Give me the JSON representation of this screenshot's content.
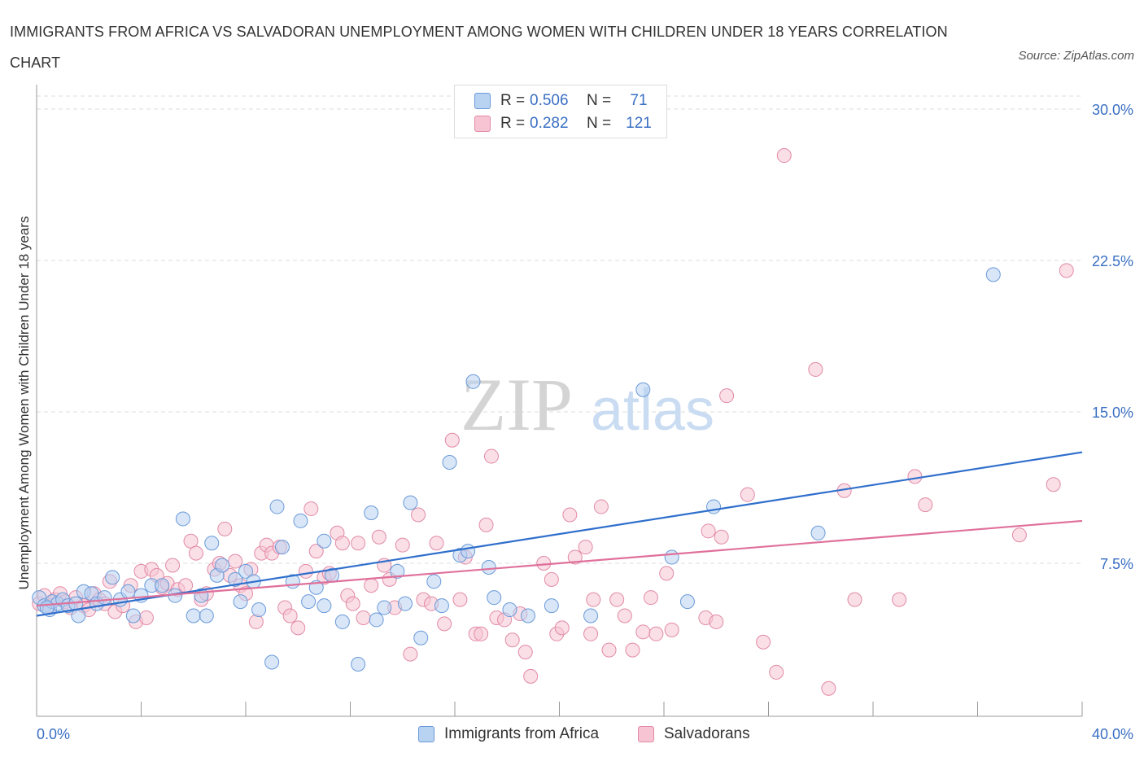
{
  "title": "IMMIGRANTS FROM AFRICA VS SALVADORAN UNEMPLOYMENT AMONG WOMEN WITH CHILDREN UNDER 18 YEARS CORRELATION CHART",
  "source": "Source: ZipAtlas.com",
  "watermark": {
    "zip": "ZIP",
    "atlas": "atlas"
  },
  "legend": {
    "r_label": "R =",
    "n_label": "N =",
    "series": [
      {
        "name": "Immigrants from Africa",
        "r": "0.506",
        "n": "71",
        "fill": "#b8d2f2",
        "stroke": "#6a9ad8"
      },
      {
        "name": "Salvadorans",
        "r": "0.282",
        "n": "121",
        "fill": "#f6c4d3",
        "stroke": "#e28aa6"
      }
    ]
  },
  "colors": {
    "blue_line": "#2f6fcc",
    "pink_line": "#e0709a",
    "tick_label": "#3a6fc4",
    "grid": "#dddddd"
  },
  "chart_data": {
    "type": "scatter",
    "title": "IMMIGRANTS FROM AFRICA VS SALVADORAN UNEMPLOYMENT AMONG WOMEN WITH CHILDREN UNDER 18 YEARS CORRELATION CHART",
    "xlabel": "",
    "ylabel": "Unemployment Among Women with Children Under 18 years",
    "xlim": [
      0,
      40
    ],
    "ylim": [
      0,
      30
    ],
    "x_tick_labels": [
      "0.0%",
      "40.0%"
    ],
    "y_ticks": [
      7.5,
      15.0,
      22.5,
      30.0
    ],
    "y_tick_labels": [
      "7.5%",
      "15.0%",
      "22.5%",
      "30.0%"
    ],
    "grid": true,
    "legend_position": "top-center",
    "series": [
      {
        "name": "Immigrants from Africa",
        "r": 0.506,
        "n": 71,
        "trend": {
          "x": [
            0,
            40
          ],
          "y": [
            4.9,
            13.0
          ]
        },
        "points": [
          [
            0.1,
            5.8
          ],
          [
            0.3,
            5.4
          ],
          [
            0.5,
            5.2
          ],
          [
            0.6,
            5.6
          ],
          [
            0.8,
            5.5
          ],
          [
            1.0,
            5.7
          ],
          [
            1.2,
            5.4
          ],
          [
            1.5,
            5.5
          ],
          [
            1.6,
            4.9
          ],
          [
            1.8,
            6.1
          ],
          [
            2.1,
            6.0
          ],
          [
            2.3,
            5.5
          ],
          [
            2.6,
            5.8
          ],
          [
            2.9,
            6.8
          ],
          [
            3.2,
            5.7
          ],
          [
            3.5,
            6.1
          ],
          [
            3.7,
            4.9
          ],
          [
            4.0,
            5.9
          ],
          [
            4.4,
            6.4
          ],
          [
            4.8,
            6.4
          ],
          [
            5.3,
            5.9
          ],
          [
            5.6,
            9.7
          ],
          [
            6.0,
            4.9
          ],
          [
            6.3,
            5.9
          ],
          [
            6.5,
            4.9
          ],
          [
            6.7,
            8.5
          ],
          [
            6.9,
            6.9
          ],
          [
            7.1,
            7.4
          ],
          [
            7.6,
            6.7
          ],
          [
            7.8,
            5.6
          ],
          [
            8.0,
            7.1
          ],
          [
            8.3,
            6.6
          ],
          [
            8.5,
            5.2
          ],
          [
            9.0,
            2.6
          ],
          [
            9.2,
            10.3
          ],
          [
            9.4,
            8.3
          ],
          [
            9.8,
            6.6
          ],
          [
            10.1,
            9.6
          ],
          [
            10.4,
            5.6
          ],
          [
            10.7,
            6.3
          ],
          [
            11.0,
            8.6
          ],
          [
            11.3,
            6.9
          ],
          [
            11.0,
            5.4
          ],
          [
            11.7,
            4.6
          ],
          [
            12.3,
            2.5
          ],
          [
            12.8,
            10.0
          ],
          [
            13.0,
            4.7
          ],
          [
            13.3,
            5.3
          ],
          [
            13.8,
            7.1
          ],
          [
            14.1,
            5.5
          ],
          [
            14.3,
            10.5
          ],
          [
            14.7,
            3.8
          ],
          [
            15.2,
            6.6
          ],
          [
            15.5,
            5.4
          ],
          [
            15.8,
            12.5
          ],
          [
            16.2,
            7.9
          ],
          [
            16.5,
            8.1
          ],
          [
            16.7,
            16.5
          ],
          [
            17.3,
            7.3
          ],
          [
            17.5,
            5.8
          ],
          [
            18.1,
            5.2
          ],
          [
            18.8,
            4.9
          ],
          [
            19.7,
            5.4
          ],
          [
            21.2,
            4.9
          ],
          [
            23.2,
            16.1
          ],
          [
            24.3,
            7.8
          ],
          [
            24.9,
            5.6
          ],
          [
            25.9,
            10.3
          ],
          [
            29.9,
            9.0
          ],
          [
            36.6,
            21.8
          ],
          [
            0.4,
            5.3
          ]
        ]
      },
      {
        "name": "Salvadorans",
        "r": 0.282,
        "n": 121,
        "trend": {
          "x": [
            0,
            40
          ],
          "y": [
            5.4,
            9.6
          ]
        },
        "points": [
          [
            0.1,
            5.5
          ],
          [
            0.3,
            5.9
          ],
          [
            0.5,
            5.4
          ],
          [
            0.7,
            5.7
          ],
          [
            0.9,
            6.0
          ],
          [
            1.1,
            5.6
          ],
          [
            1.3,
            5.3
          ],
          [
            1.5,
            5.8
          ],
          [
            1.8,
            5.4
          ],
          [
            2.0,
            5.2
          ],
          [
            2.2,
            6.0
          ],
          [
            2.4,
            5.7
          ],
          [
            2.6,
            5.5
          ],
          [
            2.8,
            6.6
          ],
          [
            3.0,
            5.1
          ],
          [
            3.3,
            5.4
          ],
          [
            3.6,
            6.4
          ],
          [
            3.8,
            4.6
          ],
          [
            4.0,
            7.1
          ],
          [
            4.2,
            4.8
          ],
          [
            4.4,
            7.2
          ],
          [
            4.6,
            6.9
          ],
          [
            4.8,
            6.3
          ],
          [
            5.0,
            6.5
          ],
          [
            5.2,
            7.4
          ],
          [
            5.4,
            6.2
          ],
          [
            5.7,
            6.4
          ],
          [
            5.9,
            8.6
          ],
          [
            6.1,
            8.0
          ],
          [
            6.3,
            5.7
          ],
          [
            6.5,
            6.0
          ],
          [
            6.8,
            7.2
          ],
          [
            7.0,
            7.5
          ],
          [
            7.2,
            9.2
          ],
          [
            7.4,
            6.9
          ],
          [
            7.6,
            7.6
          ],
          [
            7.8,
            6.4
          ],
          [
            8.0,
            6.0
          ],
          [
            8.2,
            7.2
          ],
          [
            8.4,
            4.6
          ],
          [
            8.6,
            8.0
          ],
          [
            8.8,
            8.4
          ],
          [
            9.0,
            8.0
          ],
          [
            9.3,
            8.3
          ],
          [
            9.5,
            5.3
          ],
          [
            9.7,
            4.9
          ],
          [
            10.0,
            4.3
          ],
          [
            10.3,
            7.1
          ],
          [
            10.5,
            10.2
          ],
          [
            10.7,
            8.1
          ],
          [
            11.0,
            6.8
          ],
          [
            11.2,
            7.0
          ],
          [
            11.5,
            9.0
          ],
          [
            11.7,
            8.5
          ],
          [
            11.9,
            5.9
          ],
          [
            12.1,
            5.5
          ],
          [
            12.3,
            8.5
          ],
          [
            12.5,
            4.8
          ],
          [
            12.8,
            6.4
          ],
          [
            13.1,
            8.8
          ],
          [
            13.3,
            7.4
          ],
          [
            13.5,
            6.7
          ],
          [
            13.7,
            5.3
          ],
          [
            14.0,
            8.4
          ],
          [
            14.3,
            3.0
          ],
          [
            14.6,
            9.9
          ],
          [
            14.8,
            5.7
          ],
          [
            15.1,
            5.5
          ],
          [
            15.3,
            8.5
          ],
          [
            15.6,
            4.5
          ],
          [
            15.9,
            13.6
          ],
          [
            16.2,
            5.7
          ],
          [
            16.4,
            7.8
          ],
          [
            16.8,
            4.0
          ],
          [
            17.0,
            4.0
          ],
          [
            17.2,
            9.4
          ],
          [
            17.4,
            12.8
          ],
          [
            17.6,
            4.8
          ],
          [
            17.9,
            4.7
          ],
          [
            18.2,
            3.7
          ],
          [
            18.5,
            5.0
          ],
          [
            18.7,
            3.1
          ],
          [
            18.9,
            1.9
          ],
          [
            19.4,
            7.5
          ],
          [
            19.7,
            6.7
          ],
          [
            19.9,
            4.0
          ],
          [
            20.1,
            4.3
          ],
          [
            20.4,
            9.9
          ],
          [
            20.6,
            7.8
          ],
          [
            21.0,
            8.3
          ],
          [
            21.2,
            4.0
          ],
          [
            21.6,
            10.3
          ],
          [
            21.9,
            3.2
          ],
          [
            22.2,
            5.7
          ],
          [
            22.5,
            4.9
          ],
          [
            22.8,
            3.2
          ],
          [
            23.2,
            4.1
          ],
          [
            23.5,
            5.8
          ],
          [
            24.1,
            7.0
          ],
          [
            24.3,
            4.2
          ],
          [
            25.6,
            4.8
          ],
          [
            25.7,
            9.1
          ],
          [
            26.2,
            8.8
          ],
          [
            26.4,
            15.8
          ],
          [
            27.2,
            10.9
          ],
          [
            27.8,
            3.6
          ],
          [
            28.3,
            2.1
          ],
          [
            28.6,
            27.7
          ],
          [
            29.8,
            17.1
          ],
          [
            30.3,
            1.3
          ],
          [
            30.9,
            11.1
          ],
          [
            31.3,
            5.7
          ],
          [
            33.0,
            5.7
          ],
          [
            33.6,
            11.8
          ],
          [
            34.0,
            10.4
          ],
          [
            37.6,
            8.9
          ],
          [
            38.9,
            11.4
          ],
          [
            39.4,
            22.0
          ],
          [
            23.7,
            4.0
          ],
          [
            21.3,
            5.7
          ],
          [
            26.0,
            4.6
          ]
        ]
      }
    ]
  }
}
